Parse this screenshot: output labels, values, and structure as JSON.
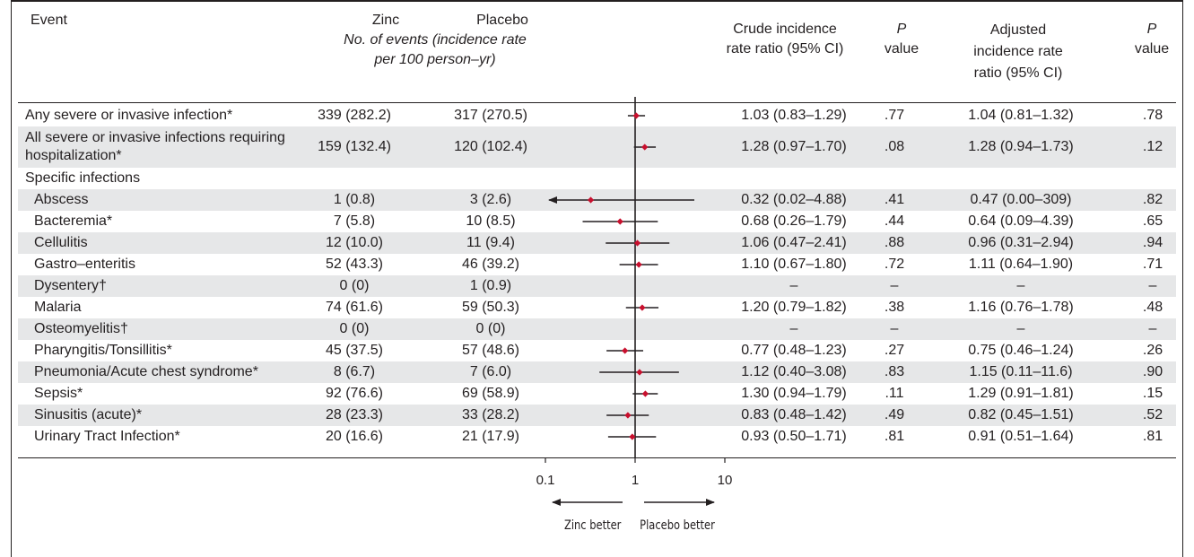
{
  "header": {
    "event": "Event",
    "zinc": "Zinc",
    "placebo": "Placebo",
    "events_note_line1": "No. of events (incidence rate",
    "events_note_line2": "per 100 person–yr)",
    "crude_line1": "Crude incidence",
    "crude_line2": "rate ratio (95% CI)",
    "p1_line1": "P",
    "p1_line2": "value",
    "adj_line1": "Adjusted",
    "adj_line2": "incidence rate",
    "adj_line3": "ratio (95% CI)",
    "p2_line1": "P",
    "p2_line2": "value"
  },
  "rows": [
    {
      "event": "Any severe or invasive infection*",
      "zinc": "339 (282.2)",
      "placebo": "317 (270.5)",
      "crude": "1.03 (0.83–1.29)",
      "p1": ".77",
      "adjusted": "1.04 (0.81–1.32)",
      "p2": ".78"
    },
    {
      "event": "All severe or invasive infections requiring hospitalization*",
      "zinc": "159 (132.4)",
      "placebo": "120 (102.4)",
      "crude": "1.28 (0.97–1.70)",
      "p1": ".08",
      "adjusted": "1.28 (0.94–1.73)",
      "p2": ".12"
    },
    {
      "event": "Specific infections",
      "zinc": "",
      "placebo": "",
      "crude": "",
      "p1": "",
      "adjusted": "",
      "p2": ""
    },
    {
      "event": "Abscess",
      "zinc": "1 (0.8)",
      "placebo": "3 (2.6)",
      "crude": "0.32 (0.02–4.88)",
      "p1": ".41",
      "adjusted": "0.47 (0.00–309)",
      "p2": ".82"
    },
    {
      "event": "Bacteremia*",
      "zinc": "7 (5.8)",
      "placebo": "10 (8.5)",
      "crude": "0.68 (0.26–1.79)",
      "p1": ".44",
      "adjusted": "0.64 (0.09–4.39)",
      "p2": ".65"
    },
    {
      "event": "Cellulitis",
      "zinc": "12 (10.0)",
      "placebo": "11 (9.4)",
      "crude": "1.06 (0.47–2.41)",
      "p1": ".88",
      "adjusted": "0.96 (0.31–2.94)",
      "p2": ".94"
    },
    {
      "event": "Gastro–enteritis",
      "zinc": "52 (43.3)",
      "placebo": "46 (39.2)",
      "crude": "1.10 (0.67–1.80)",
      "p1": ".72",
      "adjusted": "1.11 (0.64–1.90)",
      "p2": ".71"
    },
    {
      "event": "Dysentery†",
      "zinc": "0 (0)",
      "placebo": "1 (0.9)",
      "crude": "–",
      "p1": "–",
      "adjusted": "–",
      "p2": "–"
    },
    {
      "event": "Malaria",
      "zinc": "74 (61.6)",
      "placebo": "59 (50.3)",
      "crude": "1.20 (0.79–1.82)",
      "p1": ".38",
      "adjusted": "1.16 (0.76–1.78)",
      "p2": ".48"
    },
    {
      "event": "Osteomyelitis†",
      "zinc": "0 (0)",
      "placebo": "0 (0)",
      "crude": "–",
      "p1": "–",
      "adjusted": "–",
      "p2": "–"
    },
    {
      "event": "Pharyngitis/Tonsillitis*",
      "zinc": "45 (37.5)",
      "placebo": "57 (48.6)",
      "crude": "0.77 (0.48–1.23)",
      "p1": ".27",
      "adjusted": "0.75 (0.46–1.24)",
      "p2": ".26"
    },
    {
      "event": "Pneumonia/Acute chest syndrome*",
      "zinc": "8 (6.7)",
      "placebo": "7 (6.0)",
      "crude": "1.12 (0.40–3.08)",
      "p1": ".83",
      "adjusted": "1.15 (0.11–11.6)",
      "p2": ".90"
    },
    {
      "event": "Sepsis*",
      "zinc": "92 (76.6)",
      "placebo": "69 (58.9)",
      "crude": "1.30 (0.94–1.79)",
      "p1": ".11",
      "adjusted": "1.29 (0.91–1.81)",
      "p2": ".15"
    },
    {
      "event": "Sinusitis (acute)*",
      "zinc": "28 (23.3)",
      "placebo": "33 (28.2)",
      "crude": "0.83 (0.48–1.42)",
      "p1": ".49",
      "adjusted": "0.82 (0.45–1.51)",
      "p2": ".52"
    },
    {
      "event": "Urinary Tract Infection*",
      "zinc": "20 (16.6)",
      "placebo": "21 (17.9)",
      "crude": "0.93 (0.50–1.71)",
      "p1": ".81",
      "adjusted": "0.91 (0.51–1.64)",
      "p2": ".81"
    }
  ],
  "chart_data": {
    "type": "forest",
    "scale": "log",
    "xlim": [
      0.1,
      10
    ],
    "ticks": [
      "0.1",
      "1",
      "10"
    ],
    "reference_line": 1,
    "left_arrow_label": "Zinc better",
    "right_arrow_label": "Placebo better",
    "marker_color": "#c8102e",
    "points": [
      {
        "row": 0,
        "est": 1.03,
        "lo": 0.83,
        "hi": 1.29,
        "arrow_left": false
      },
      {
        "row": 1,
        "est": 1.28,
        "lo": 0.97,
        "hi": 1.7,
        "arrow_left": false
      },
      {
        "row": 3,
        "est": 0.32,
        "lo": 0.02,
        "hi": 4.88,
        "arrow_left": true
      },
      {
        "row": 4,
        "est": 0.68,
        "lo": 0.26,
        "hi": 1.79,
        "arrow_left": false
      },
      {
        "row": 5,
        "est": 1.06,
        "lo": 0.47,
        "hi": 2.41,
        "arrow_left": false
      },
      {
        "row": 6,
        "est": 1.1,
        "lo": 0.67,
        "hi": 1.8,
        "arrow_left": false
      },
      {
        "row": 8,
        "est": 1.2,
        "lo": 0.79,
        "hi": 1.82,
        "arrow_left": false
      },
      {
        "row": 10,
        "est": 0.77,
        "lo": 0.48,
        "hi": 1.23,
        "arrow_left": false
      },
      {
        "row": 11,
        "est": 1.12,
        "lo": 0.4,
        "hi": 3.08,
        "arrow_left": false
      },
      {
        "row": 12,
        "est": 1.3,
        "lo": 0.94,
        "hi": 1.79,
        "arrow_left": false
      },
      {
        "row": 13,
        "est": 0.83,
        "lo": 0.48,
        "hi": 1.42,
        "arrow_left": false
      },
      {
        "row": 14,
        "est": 0.93,
        "lo": 0.5,
        "hi": 1.71,
        "arrow_left": false
      }
    ]
  }
}
